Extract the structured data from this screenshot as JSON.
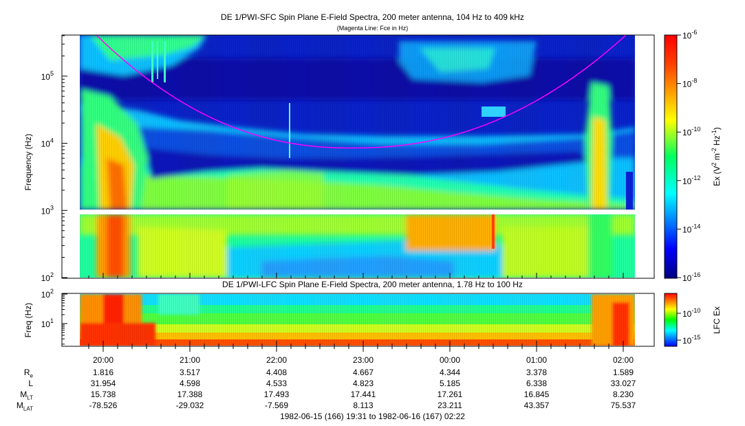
{
  "chart_data": [
    {
      "type": "heatmap",
      "title": "DE 1/PWI-SFC  Spin Plane E-Field Spectra, 200 meter antenna, 104 Hz to 409 kHz",
      "subtitle": "(Magenta Line: Fce in Hz)",
      "ylabel": "Frequency (Hz)",
      "y_scale": "log",
      "ylim": [
        100,
        409000
      ],
      "y_ticks": [
        {
          "value": 100,
          "label": "10",
          "exp": "2"
        },
        {
          "value": 1000,
          "label": "10",
          "exp": "3"
        },
        {
          "value": 10000,
          "label": "10",
          "exp": "4"
        },
        {
          "value": 100000,
          "label": "10",
          "exp": "5"
        }
      ],
      "colorbar": {
        "label_main": "Ex (V",
        "label_sup1": "2",
        "label_mid": " m",
        "label_sup2": "-2",
        "label_mid2": " Hz",
        "label_sup3": "-1",
        "label_end": ")",
        "scale": "log",
        "range": [
          1e-16,
          1e-06
        ],
        "ticks": [
          {
            "value": 1e-06,
            "label": "10",
            "exp": "-6"
          },
          {
            "value": 1e-08,
            "label": "10",
            "exp": "-8"
          },
          {
            "value": 1e-10,
            "label": "10",
            "exp": "-10"
          },
          {
            "value": 1e-12,
            "label": "10",
            "exp": "-12"
          },
          {
            "value": 1e-14,
            "label": "10",
            "exp": "-14"
          },
          {
            "value": 1e-16,
            "label": "10",
            "exp": "-16"
          }
        ]
      },
      "overlay_line": {
        "color": "#ff00ff",
        "min_value_hz": 8500,
        "min_time": "22:52"
      },
      "colors": {
        "background": "#0a1ab4",
        "line": "#ff00ff"
      }
    },
    {
      "type": "heatmap",
      "title": "DE 1/PWI-LFC  Spin Plane E-Field Spectra, 200 meter antenna, 1.78 Hz to 100 Hz",
      "ylabel": "Freq (Hz)",
      "y_scale": "log",
      "ylim": [
        1.78,
        100
      ],
      "y_ticks": [
        {
          "value": 10,
          "label": "10",
          "exp": "1"
        },
        {
          "value": 100,
          "label": "10",
          "exp": "2"
        }
      ],
      "colorbar": {
        "label": "LFC Ex",
        "ticks": [
          {
            "value": 1e-10,
            "label": "10",
            "exp": "-10"
          },
          {
            "value": 1e-15,
            "label": "10",
            "exp": "-15"
          }
        ]
      }
    }
  ],
  "x_axis": {
    "ticks": [
      "20:00",
      "21:00",
      "22:00",
      "23:00",
      "00:00",
      "01:00",
      "02:00"
    ]
  },
  "ephemeris": {
    "rows": [
      {
        "label": "R",
        "sub": "e",
        "values": [
          "1.816",
          "3.517",
          "4.408",
          "4.667",
          "4.344",
          "3.378",
          "1.589"
        ]
      },
      {
        "label": "L",
        "sub": "",
        "values": [
          "31.954",
          "4.598",
          "4.533",
          "4.823",
          "5.185",
          "6.338",
          "33.027"
        ]
      },
      {
        "label": "M",
        "sub": "LT",
        "values": [
          "15.738",
          "17.388",
          "17.493",
          "17.441",
          "17.261",
          "16.845",
          "8.230"
        ]
      },
      {
        "label": "M",
        "sub": "LAT",
        "values": [
          "-78.526",
          "-29.032",
          "-7.569",
          "8.113",
          "23.211",
          "43.357",
          "75.537"
        ]
      }
    ]
  },
  "footer": "1982-06-15 (166) 19:31 to 1982-06-16 (167) 02:22"
}
